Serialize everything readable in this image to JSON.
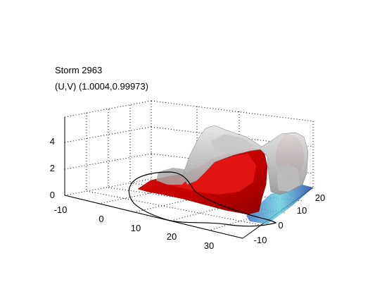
{
  "window": {
    "title_line1": "Storm 2963",
    "title_line2": "(U,V) (1.0004,0.99973)"
  },
  "chart_data": {
    "type": "surface3d",
    "title": "Storm 2963",
    "subtitle": "(U,V) (1.0004,0.99973)",
    "axes": {
      "x": {
        "ticks": [
          -10,
          0,
          10,
          20,
          30
        ],
        "tick_labels": [
          "-10",
          "0",
          "10",
          "20",
          "30"
        ]
      },
      "y": {
        "ticks": [
          -10,
          0,
          10,
          20
        ],
        "tick_labels": [
          "-10",
          "0",
          "10",
          "20"
        ]
      },
      "z": {
        "ticks": [
          0,
          2,
          4
        ],
        "tick_labels": [
          "0",
          "2",
          "4"
        ]
      }
    },
    "grid": true,
    "colors": {
      "surface_high": "#cc0000",
      "surface_mid": "#b8b8b8",
      "floor": "#2255aa",
      "outline": "#000000"
    }
  }
}
